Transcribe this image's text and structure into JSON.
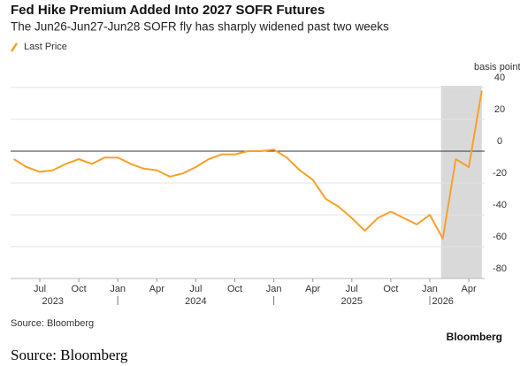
{
  "chart_data": {
    "type": "line",
    "title": "Fed Hike Premium Added Into 2027 SOFR Futures",
    "subtitle": "The Jun26-Jun27-Jun28 SOFR fly has sharply widened past two weeks",
    "y_label": "basis points",
    "source": "Source: Bloomberg",
    "brand": "Bloomberg",
    "caption": "Source: Bloomberg",
    "x": [
      "2023-05",
      "2023-06",
      "2023-07",
      "2023-08",
      "2023-09",
      "2023-10",
      "2023-11",
      "2023-12",
      "2024-01",
      "2024-02",
      "2024-03",
      "2024-04",
      "2024-05",
      "2024-06",
      "2024-07",
      "2024-08",
      "2024-09",
      "2024-10",
      "2024-11",
      "2024-12",
      "2025-01",
      "2025-02",
      "2025-03",
      "2025-04",
      "2025-05",
      "2025-06",
      "2025-07",
      "2025-08",
      "2025-09",
      "2025-10",
      "2025-11",
      "2025-12",
      "2026-01",
      "2026-02",
      "2026-03",
      "2026-04",
      "2026-05"
    ],
    "series": [
      {
        "name": "Last Price",
        "color": "#f7a128",
        "values": [
          -5,
          -10,
          -13,
          -12,
          -8,
          -5,
          -8,
          -4,
          -4,
          -8,
          -11,
          -12,
          -16,
          -14,
          -10,
          -5,
          -2,
          -2,
          0,
          0,
          1,
          -4,
          -12,
          -18,
          -30,
          -35,
          -42,
          -50,
          -42,
          -38,
          -42,
          -46,
          -40,
          -55,
          -5,
          -10,
          38
        ]
      }
    ],
    "ylim": [
      -80,
      40
    ],
    "yticks": [
      40,
      20,
      0,
      -20,
      -40,
      -60,
      -80
    ],
    "xticks": [
      {
        "value": "2023-07",
        "label": "Jul"
      },
      {
        "value": "2023-10",
        "label": "Oct"
      },
      {
        "value": "2024-01",
        "label": "Jan"
      },
      {
        "value": "2024-04",
        "label": "Apr"
      },
      {
        "value": "2024-07",
        "label": "Jul"
      },
      {
        "value": "2024-10",
        "label": "Oct"
      },
      {
        "value": "2025-01",
        "label": "Jan"
      },
      {
        "value": "2025-04",
        "label": "Apr"
      },
      {
        "value": "2025-07",
        "label": "Jul"
      },
      {
        "value": "2025-10",
        "label": "Oct"
      },
      {
        "value": "2026-01",
        "label": "Jan"
      },
      {
        "value": "2026-04",
        "label": "Apr"
      }
    ],
    "year_labels": [
      {
        "value": "2023-08",
        "label": "2023"
      },
      {
        "value": "2024-07",
        "label": "2024"
      },
      {
        "value": "2025-07",
        "label": "2025"
      },
      {
        "value": "2026-02",
        "label": "2026"
      }
    ],
    "shade": [
      "2026-02",
      "2026-05"
    ],
    "grid": true
  }
}
